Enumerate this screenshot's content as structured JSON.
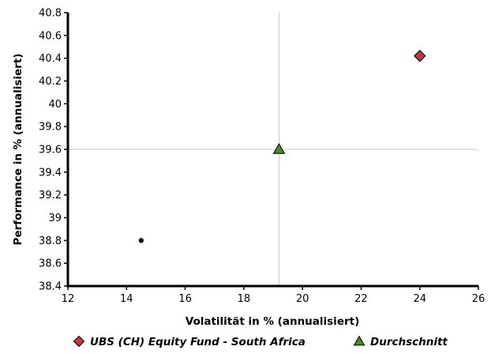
{
  "chart_data": {
    "type": "scatter",
    "xlabel": "Volatilität in % (annualisiert)",
    "ylabel": "Performance in % (annualisiert)",
    "xlim": [
      12,
      26
    ],
    "ylim": [
      38.4,
      40.8
    ],
    "x_ticks": [
      "12",
      "14",
      "16",
      "18",
      "20",
      "22",
      "24",
      "26"
    ],
    "y_ticks": [
      "38.4",
      "38.6",
      "38.8",
      "39",
      "39.2",
      "39.4",
      "39.6",
      "39.8",
      "40",
      "40.2",
      "40.4",
      "40.6",
      "40.8"
    ],
    "reference_lines": {
      "x": 19.2,
      "y": 39.6
    },
    "grid": false,
    "legend_position": "bottom",
    "series": [
      {
        "name": "UBS (CH) Equity Fund - South Africa",
        "marker": "diamond",
        "color": "#c0393b",
        "points": [
          {
            "x": 24.0,
            "y": 40.42
          }
        ]
      },
      {
        "name": "Durchschnitt",
        "marker": "triangle",
        "color": "#4a8a2f",
        "points": [
          {
            "x": 19.2,
            "y": 39.6
          }
        ]
      },
      {
        "marker": "dot",
        "color": "#000000",
        "points": [
          {
            "x": 14.5,
            "y": 38.8
          }
        ]
      }
    ]
  }
}
